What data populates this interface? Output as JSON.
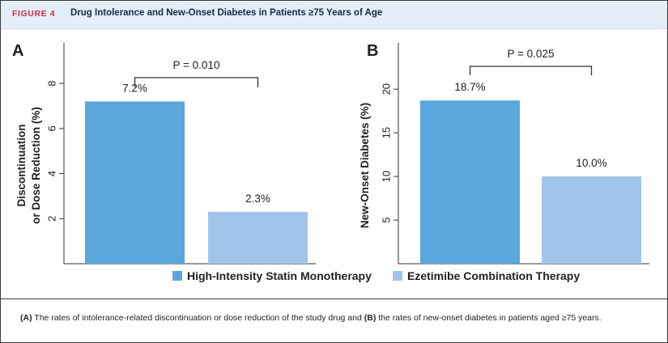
{
  "figure": {
    "label": "FIGURE 4",
    "title": "Drug Intolerance and New-Onset Diabetes in Patients ≥75 Years of Age",
    "caption": {
      "a_tag": "(A)",
      "a_text": " The rates of intolerance-related discontinuation or dose reduction of the study drug and ",
      "b_tag": "(B)",
      "b_text": " the rates of new-onset diabetes in patients aged ≥75 years."
    }
  },
  "colors": {
    "statin": "#5aa7db",
    "ezetimibe": "#9fc6ea",
    "axis": "#333333"
  },
  "legend": [
    {
      "label": "High-Intensity Statin Monotherapy",
      "color": "#5aa7db"
    },
    {
      "label": "Ezetimibe Combination Therapy",
      "color": "#9fc6ea"
    }
  ],
  "chart_data": [
    {
      "panel": "A",
      "type": "bar",
      "categories": [
        "High-Intensity Statin Monotherapy",
        "Ezetimibe Combination Therapy"
      ],
      "values": [
        7.2,
        2.3
      ],
      "value_labels": [
        "7.2%",
        "2.3%"
      ],
      "ylabel_line1": "Discontinuation",
      "ylabel_line2": "or Dose Reduction (%)",
      "ylim": [
        0,
        9.8
      ],
      "yticks": [
        2,
        4,
        6,
        8
      ],
      "p_value": "P = 0.010"
    },
    {
      "panel": "B",
      "type": "bar",
      "categories": [
        "High-Intensity Statin Monotherapy",
        "Ezetimibe Combination Therapy"
      ],
      "values": [
        18.7,
        10.0
      ],
      "value_labels": [
        "18.7%",
        "10.0%"
      ],
      "ylabel_line1": "New-Onset Diabetes (%)",
      "ylabel_line2": "",
      "ylim": [
        0,
        25.3
      ],
      "yticks": [
        5,
        10,
        15,
        20
      ],
      "p_value": "P = 0.025"
    }
  ]
}
